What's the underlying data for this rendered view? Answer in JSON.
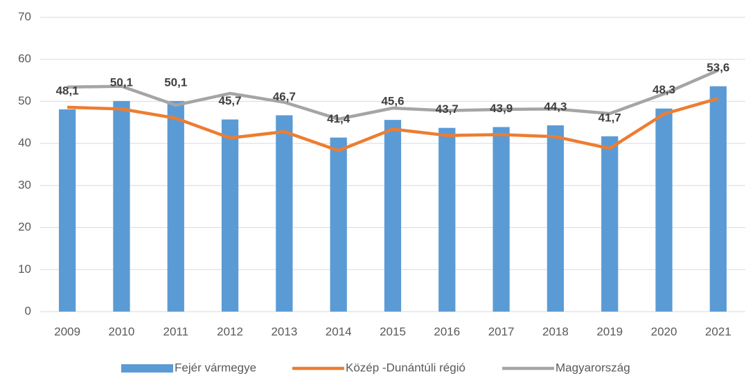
{
  "chart_data": {
    "type": "bar_line",
    "categories": [
      "2009",
      "2010",
      "2011",
      "2012",
      "2013",
      "2014",
      "2015",
      "2016",
      "2017",
      "2018",
      "2019",
      "2020",
      "2021"
    ],
    "series": [
      {
        "name": "Fejér vármegye",
        "type": "bar",
        "color": "#5b9bd5",
        "values": [
          48.1,
          50.1,
          50.1,
          45.7,
          46.7,
          41.4,
          45.6,
          43.7,
          43.9,
          44.3,
          41.7,
          48.3,
          53.6
        ],
        "value_labels": [
          "48,1",
          "50,1",
          "50,1",
          "45,7",
          "46,7",
          "41,4",
          "45,6",
          "43,7",
          "43,9",
          "44,3",
          "41,7",
          "48,3",
          "53,6"
        ]
      },
      {
        "name": "Közép -Dunántúli régió",
        "type": "line",
        "color": "#ed7d31",
        "values": [
          48.6,
          48.2,
          46.0,
          41.3,
          42.8,
          38.3,
          43.4,
          41.9,
          42.1,
          41.6,
          38.8,
          47.0,
          50.7
        ]
      },
      {
        "name": "Magyarország",
        "type": "line",
        "color": "#a5a5a5",
        "values": [
          53.4,
          53.6,
          49.1,
          51.9,
          49.8,
          45.8,
          48.4,
          47.8,
          48.1,
          48.2,
          47.1,
          51.8,
          57.4
        ]
      }
    ],
    "ylim": [
      0,
      70
    ],
    "yticks": [
      0,
      10,
      20,
      30,
      40,
      50,
      60,
      70
    ],
    "grid": true,
    "legend": "bottom"
  }
}
